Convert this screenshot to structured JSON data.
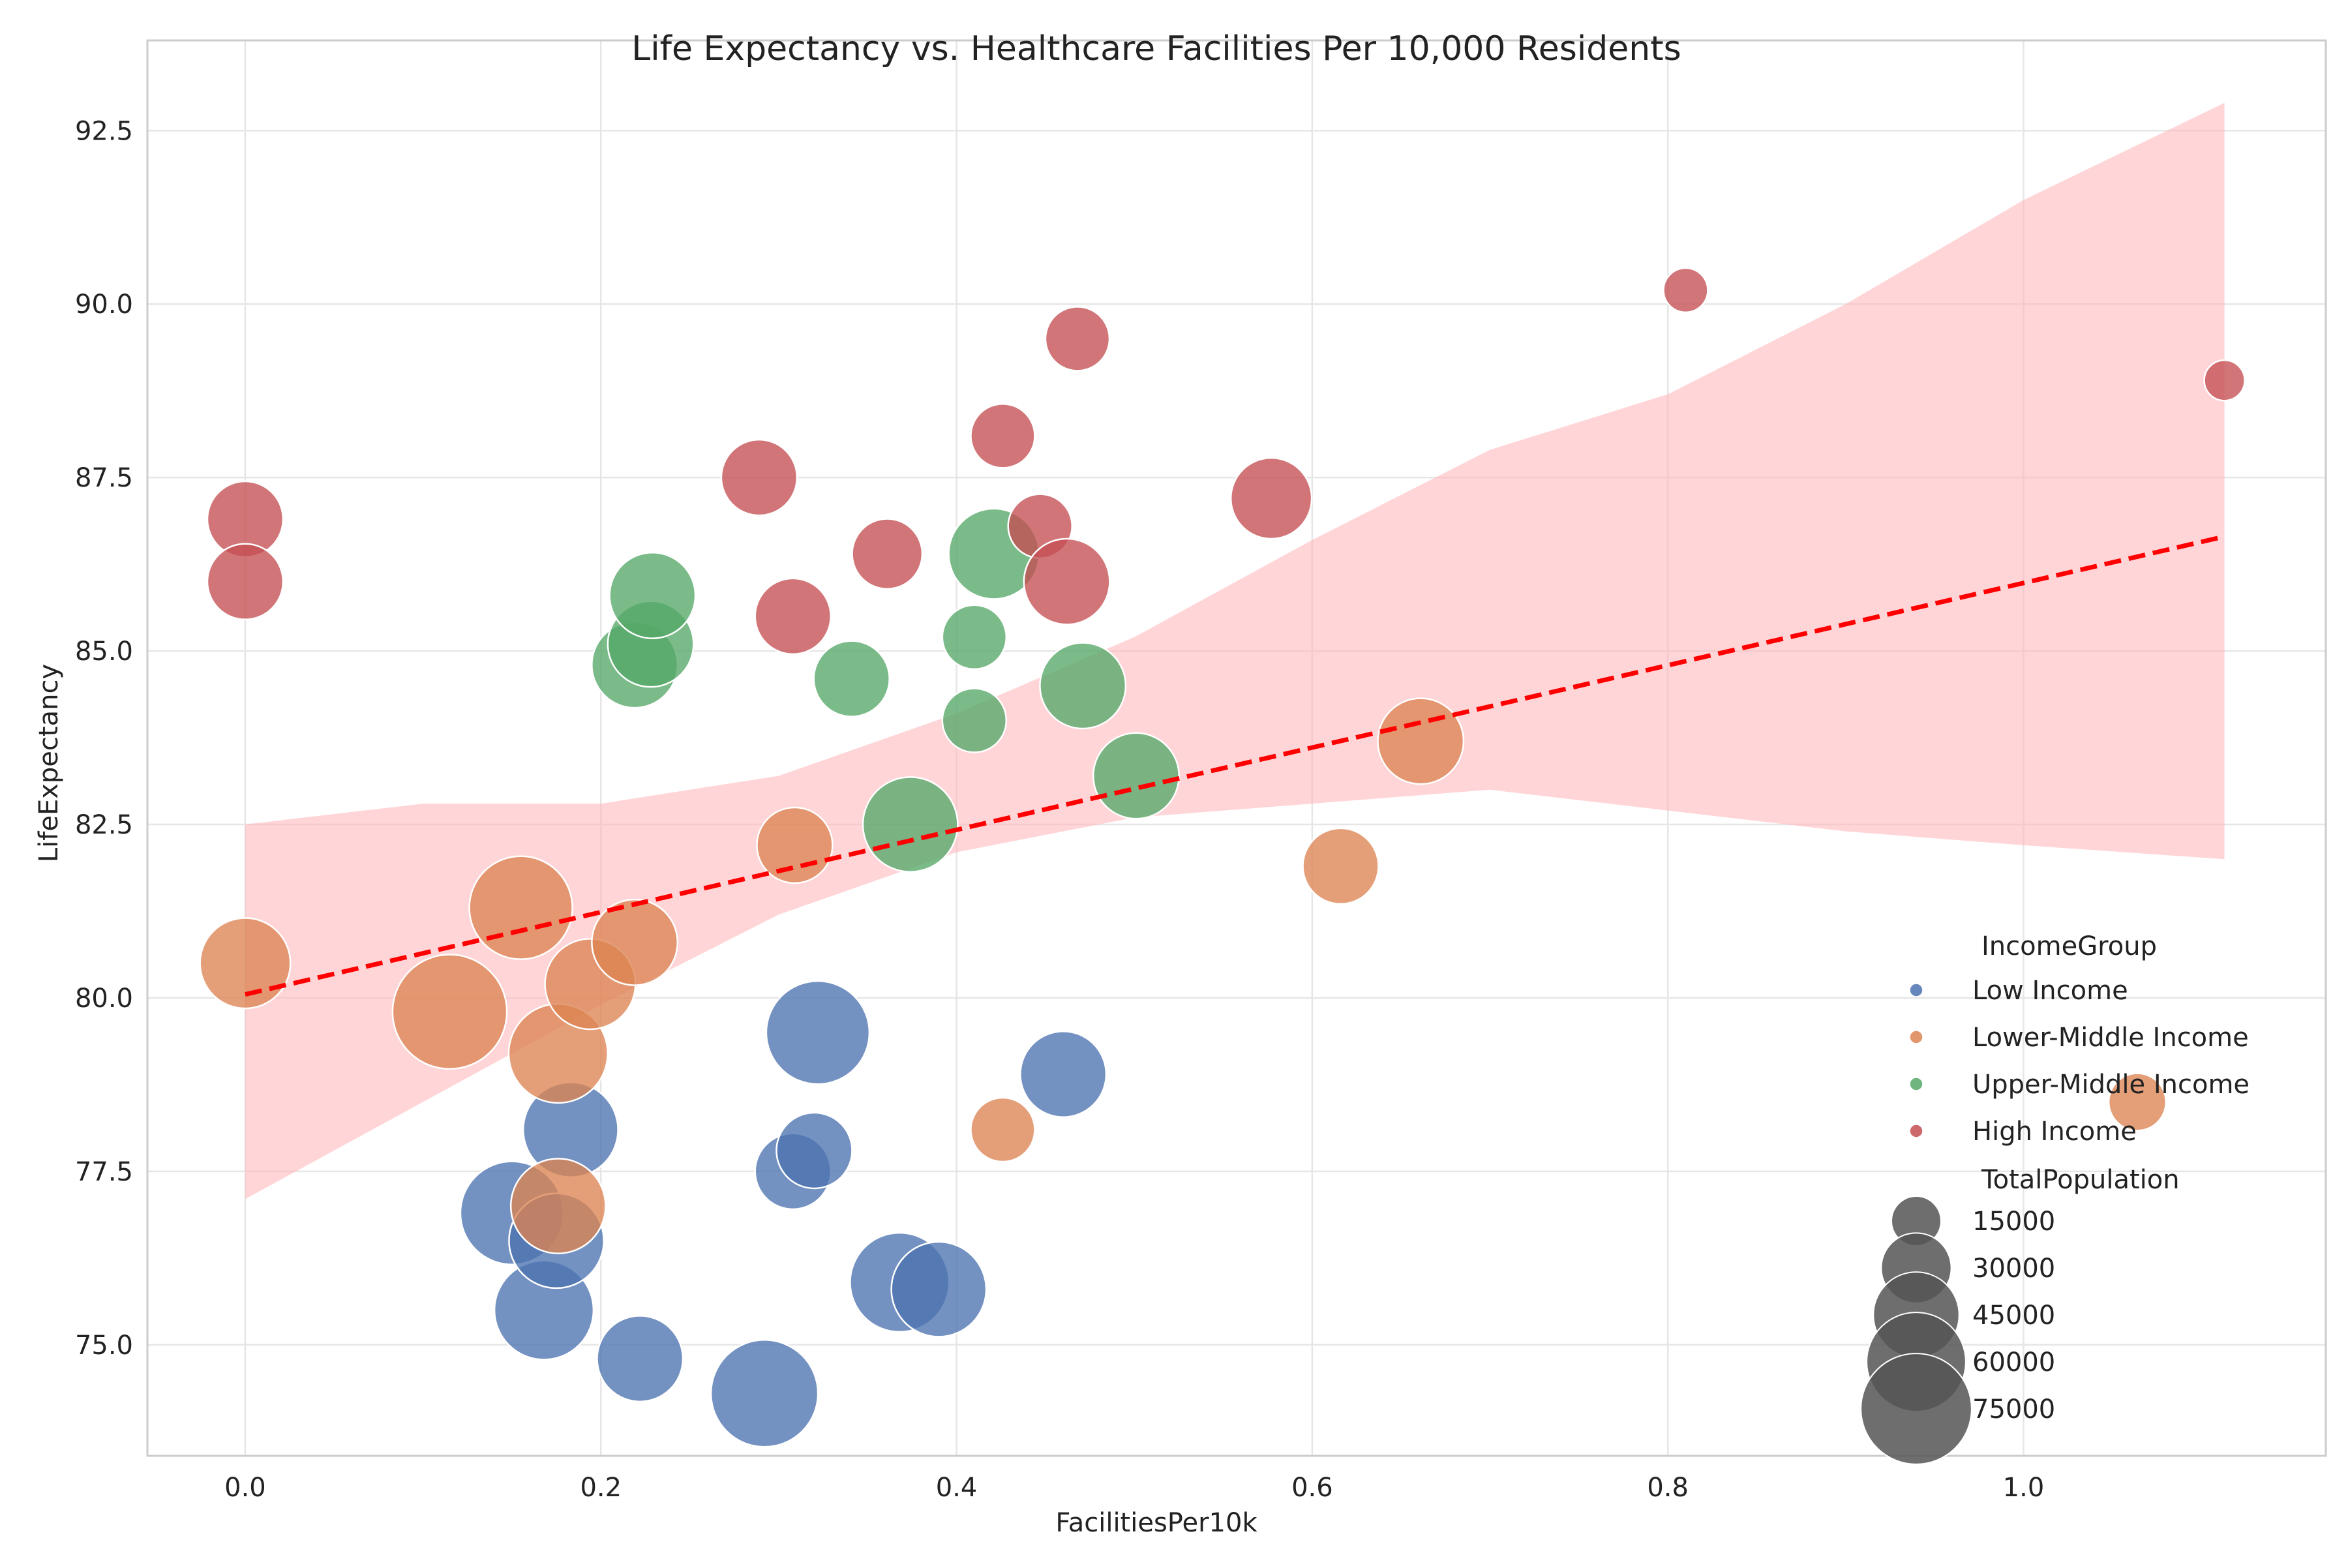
{
  "chart_data": {
    "type": "scatter",
    "title": "Life Expectancy vs. Healthcare Facilities Per 10,000 Residents",
    "xlabel": "FacilitiesPer10k",
    "ylabel": "LifeExpectancy",
    "xlim": [
      -0.055,
      1.17
    ],
    "ylim": [
      73.4,
      93.8
    ],
    "xticks": [
      0.0,
      0.2,
      0.4,
      0.6,
      0.8,
      1.0
    ],
    "xtick_labels": [
      "0.0",
      "0.2",
      "0.4",
      "0.6",
      "0.8",
      "1.0"
    ],
    "yticks": [
      75.0,
      77.5,
      80.0,
      82.5,
      85.0,
      87.5,
      90.0,
      92.5
    ],
    "ytick_labels": [
      "75.0",
      "77.5",
      "80.0",
      "82.5",
      "85.0",
      "87.5",
      "90.0",
      "92.5"
    ],
    "grid": true,
    "legend_position": "lower-right",
    "legend": {
      "hue_title": "IncomeGroup",
      "size_title": "TotalPopulation",
      "size_entries": [
        {
          "label": "15000",
          "value": 15000
        },
        {
          "label": "30000",
          "value": 30000
        },
        {
          "label": "45000",
          "value": 45000
        },
        {
          "label": "60000",
          "value": 60000
        },
        {
          "label": "75000",
          "value": 75000
        }
      ]
    },
    "series": [
      {
        "name": "Low Income",
        "color": "#4c72b0",
        "points": [
          {
            "x": 0.15,
            "y": 76.9,
            "size": 65000
          },
          {
            "x": 0.168,
            "y": 75.5,
            "size": 60000
          },
          {
            "x": 0.175,
            "y": 76.5,
            "size": 55000
          },
          {
            "x": 0.183,
            "y": 78.1,
            "size": 55000
          },
          {
            "x": 0.222,
            "y": 74.8,
            "size": 45000
          },
          {
            "x": 0.292,
            "y": 74.3,
            "size": 70000
          },
          {
            "x": 0.308,
            "y": 77.5,
            "size": 35000
          },
          {
            "x": 0.32,
            "y": 77.8,
            "size": 35000
          },
          {
            "x": 0.322,
            "y": 79.5,
            "size": 65000
          },
          {
            "x": 0.368,
            "y": 75.9,
            "size": 60000
          },
          {
            "x": 0.39,
            "y": 75.8,
            "size": 55000
          },
          {
            "x": 0.46,
            "y": 78.9,
            "size": 45000
          }
        ]
      },
      {
        "name": "Lower-Middle Income",
        "color": "#dd8452",
        "points": [
          {
            "x": 0.0,
            "y": 80.5,
            "size": 50000
          },
          {
            "x": 0.115,
            "y": 79.8,
            "size": 80000
          },
          {
            "x": 0.155,
            "y": 81.3,
            "size": 65000
          },
          {
            "x": 0.176,
            "y": 79.2,
            "size": 60000
          },
          {
            "x": 0.176,
            "y": 77.0,
            "size": 55000
          },
          {
            "x": 0.194,
            "y": 80.2,
            "size": 50000
          },
          {
            "x": 0.219,
            "y": 80.8,
            "size": 45000
          },
          {
            "x": 0.309,
            "y": 82.2,
            "size": 35000
          },
          {
            "x": 0.426,
            "y": 78.1,
            "size": 25000
          },
          {
            "x": 0.616,
            "y": 81.9,
            "size": 35000
          },
          {
            "x": 0.661,
            "y": 83.7,
            "size": 45000
          },
          {
            "x": 1.064,
            "y": 78.5,
            "size": 20000
          }
        ]
      },
      {
        "name": "Upper-Middle Income",
        "color": "#55a868",
        "points": [
          {
            "x": 0.219,
            "y": 84.8,
            "size": 45000
          },
          {
            "x": 0.228,
            "y": 85.1,
            "size": 45000
          },
          {
            "x": 0.229,
            "y": 85.8,
            "size": 45000
          },
          {
            "x": 0.341,
            "y": 84.6,
            "size": 35000
          },
          {
            "x": 0.374,
            "y": 82.5,
            "size": 55000
          },
          {
            "x": 0.41,
            "y": 85.2,
            "size": 25000
          },
          {
            "x": 0.41,
            "y": 84.0,
            "size": 25000
          },
          {
            "x": 0.421,
            "y": 86.4,
            "size": 50000
          },
          {
            "x": 0.471,
            "y": 84.5,
            "size": 45000
          },
          {
            "x": 0.501,
            "y": 83.2,
            "size": 45000
          }
        ]
      },
      {
        "name": "High Income",
        "color": "#c44e52",
        "points": [
          {
            "x": 0.0,
            "y": 86.9,
            "size": 35000
          },
          {
            "x": 0.0,
            "y": 86.0,
            "size": 35000
          },
          {
            "x": 0.289,
            "y": 87.5,
            "size": 35000
          },
          {
            "x": 0.308,
            "y": 85.5,
            "size": 35000
          },
          {
            "x": 0.361,
            "y": 86.4,
            "size": 30000
          },
          {
            "x": 0.426,
            "y": 88.1,
            "size": 25000
          },
          {
            "x": 0.447,
            "y": 86.8,
            "size": 25000
          },
          {
            "x": 0.462,
            "y": 86.0,
            "size": 45000
          },
          {
            "x": 0.468,
            "y": 89.5,
            "size": 25000
          },
          {
            "x": 0.577,
            "y": 87.2,
            "size": 40000
          },
          {
            "x": 0.81,
            "y": 90.2,
            "size": 12000
          },
          {
            "x": 1.113,
            "y": 88.9,
            "size": 10000
          }
        ]
      }
    ],
    "regression": {
      "color": "#ff0000",
      "x": [
        0.0,
        1.113
      ],
      "y": [
        80.05,
        86.65
      ],
      "ci_color": "#ffb3b8",
      "ci_x": [
        0.0,
        0.1,
        0.2,
        0.3,
        0.4,
        0.5,
        0.6,
        0.7,
        0.8,
        0.9,
        1.0,
        1.113
      ],
      "ci_lower": [
        77.1,
        78.5,
        79.9,
        81.2,
        82.1,
        82.6,
        82.8,
        83.0,
        82.7,
        82.4,
        82.2,
        82.0
      ],
      "ci_upper": [
        82.5,
        82.8,
        82.8,
        83.2,
        84.1,
        85.2,
        86.6,
        87.9,
        88.7,
        90.0,
        91.5,
        92.9
      ]
    }
  }
}
